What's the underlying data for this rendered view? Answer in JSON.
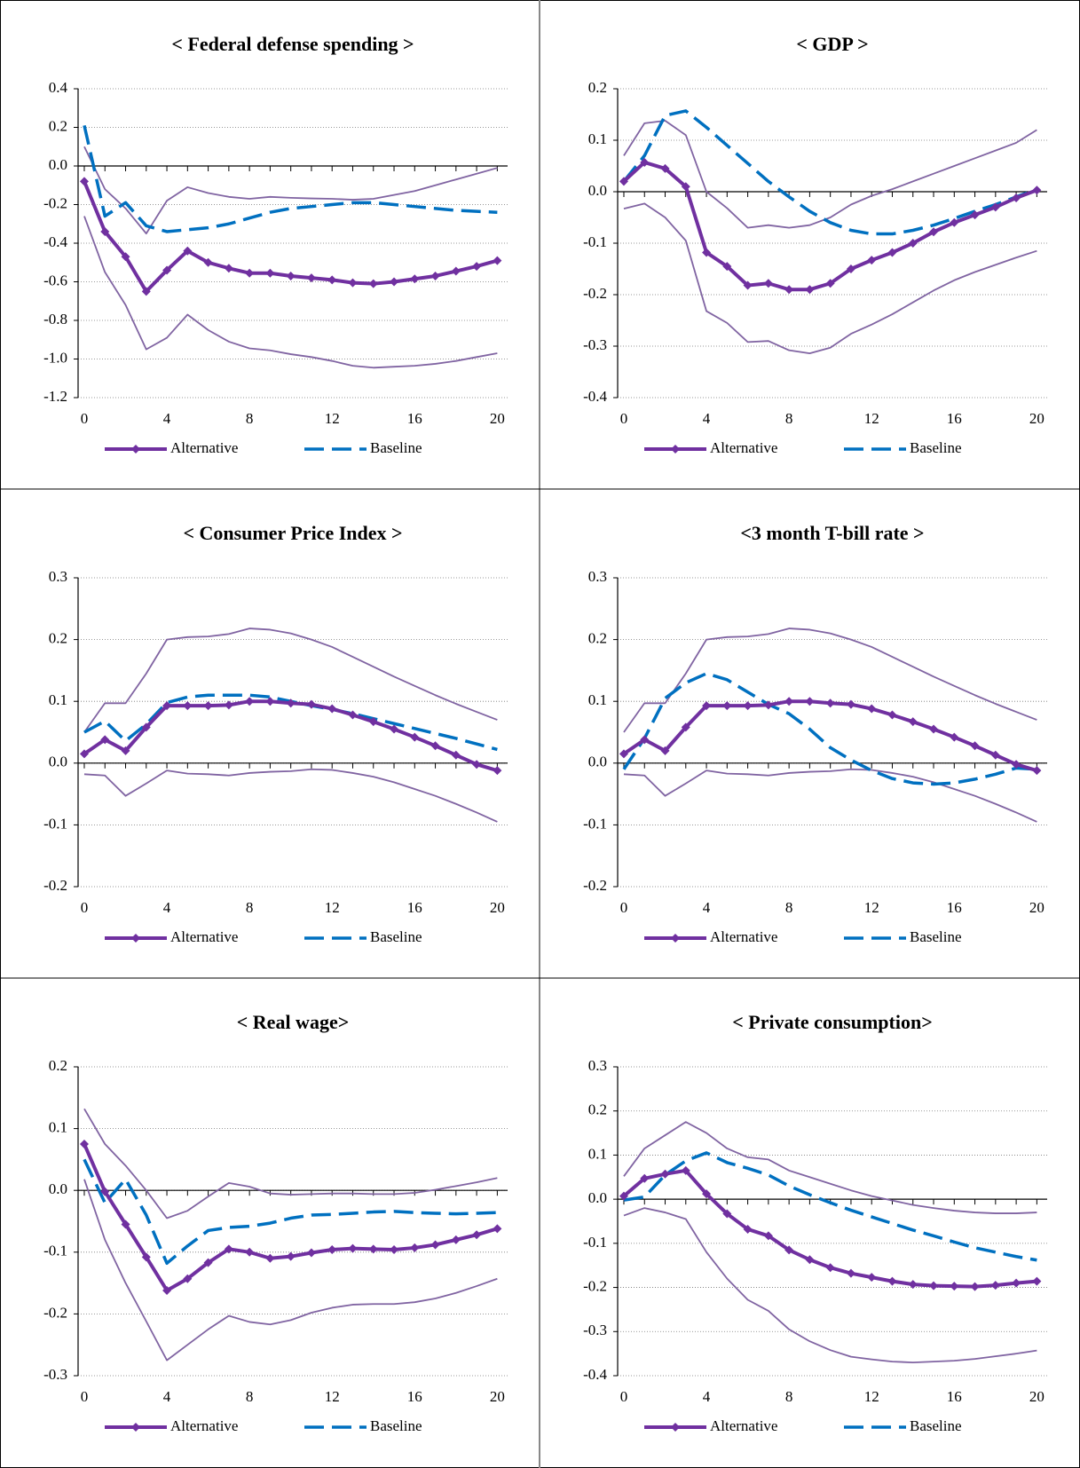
{
  "chart_data": [
    {
      "type": "line",
      "title": "< Federal defense spending >",
      "x": [
        0,
        1,
        2,
        3,
        4,
        5,
        6,
        7,
        8,
        9,
        10,
        11,
        12,
        13,
        14,
        15,
        16,
        17,
        18,
        19,
        20
      ],
      "xlim": [
        -0.3,
        20.5
      ],
      "xticks": [
        0,
        4,
        8,
        12,
        16,
        20
      ],
      "ylim": [
        -1.2,
        0.4
      ],
      "yticks": [
        -1.2,
        {
          "value": -1,
          "label": "-1.0"
        },
        -0.8,
        -0.6,
        -0.4,
        -0.2,
        {
          "value": 0,
          "label": "0.0"
        },
        0.2,
        0.4
      ],
      "grid": true,
      "series": [
        {
          "name": "Alternative",
          "color": "#7030a0",
          "marker": "diamond",
          "values": [
            -0.08,
            -0.34,
            -0.47,
            -0.65,
            -0.54,
            -0.44,
            -0.5,
            -0.53,
            -0.555,
            -0.555,
            -0.57,
            -0.58,
            -0.59,
            -0.605,
            -0.61,
            -0.6,
            -0.585,
            -0.57,
            -0.545,
            -0.52,
            -0.49
          ]
        },
        {
          "name": "Baseline",
          "color": "#0070c0",
          "dash": true,
          "values": [
            0.21,
            -0.26,
            -0.19,
            -0.31,
            -0.34,
            -0.33,
            -0.32,
            -0.3,
            -0.27,
            -0.24,
            -0.22,
            -0.21,
            -0.2,
            -0.19,
            -0.19,
            -0.2,
            -0.21,
            -0.22,
            -0.23,
            -0.235,
            -0.24
          ]
        },
        {
          "color": "#8064a2",
          "values": [
            0.1,
            -0.12,
            -0.22,
            -0.35,
            -0.18,
            -0.11,
            -0.14,
            -0.16,
            -0.17,
            -0.16,
            -0.165,
            -0.168,
            -0.17,
            -0.175,
            -0.17,
            -0.15,
            -0.13,
            -0.1,
            -0.07,
            -0.04,
            -0.01
          ]
        },
        {
          "color": "#8064a2",
          "values": [
            -0.26,
            -0.55,
            -0.72,
            -0.95,
            -0.89,
            -0.77,
            -0.85,
            -0.91,
            -0.945,
            -0.955,
            -0.975,
            -0.99,
            -1.01,
            -1.035,
            -1.045,
            -1.04,
            -1.035,
            -1.025,
            -1.01,
            -0.99,
            -0.97
          ]
        }
      ]
    },
    {
      "type": "line",
      "title": "< GDP >",
      "x": [
        0,
        1,
        2,
        3,
        4,
        5,
        6,
        7,
        8,
        9,
        10,
        11,
        12,
        13,
        14,
        15,
        16,
        17,
        18,
        19,
        20
      ],
      "xlim": [
        -0.3,
        20.5
      ],
      "xticks": [
        0,
        4,
        8,
        12,
        16,
        20
      ],
      "ylim": [
        -0.4,
        0.2
      ],
      "yticks": [
        -0.4,
        -0.3,
        -0.2,
        -0.1,
        {
          "value": 0,
          "label": "0.0"
        },
        0.1,
        0.2
      ],
      "grid": true,
      "series": [
        {
          "name": "Alternative",
          "color": "#7030a0",
          "marker": "diamond",
          "values": [
            0.02,
            0.057,
            0.045,
            0.01,
            -0.118,
            -0.145,
            -0.182,
            -0.178,
            -0.19,
            -0.19,
            -0.178,
            -0.15,
            -0.133,
            -0.118,
            -0.1,
            -0.078,
            -0.06,
            -0.045,
            -0.03,
            -0.012,
            0.003
          ]
        },
        {
          "name": "Baseline",
          "color": "#0070c0",
          "dash": true,
          "values": [
            0.02,
            0.07,
            0.148,
            0.157,
            0.125,
            0.09,
            0.055,
            0.02,
            -0.01,
            -0.038,
            -0.06,
            -0.075,
            -0.082,
            -0.082,
            -0.075,
            -0.065,
            -0.052,
            -0.038,
            -0.025,
            -0.01,
            0.005
          ]
        },
        {
          "color": "#8064a2",
          "values": [
            0.07,
            0.133,
            0.138,
            0.11,
            0.0,
            -0.032,
            -0.07,
            -0.065,
            -0.07,
            -0.065,
            -0.05,
            -0.025,
            -0.008,
            0.005,
            0.02,
            0.035,
            0.05,
            0.065,
            0.08,
            0.095,
            0.12
          ]
        },
        {
          "color": "#8064a2",
          "values": [
            -0.033,
            -0.023,
            -0.05,
            -0.095,
            -0.232,
            -0.255,
            -0.292,
            -0.29,
            -0.308,
            -0.314,
            -0.303,
            -0.276,
            -0.258,
            -0.238,
            -0.215,
            -0.192,
            -0.172,
            -0.156,
            -0.142,
            -0.128,
            -0.115
          ]
        }
      ]
    },
    {
      "type": "line",
      "title": "< Consumer Price Index >",
      "x": [
        0,
        1,
        2,
        3,
        4,
        5,
        6,
        7,
        8,
        9,
        10,
        11,
        12,
        13,
        14,
        15,
        16,
        17,
        18,
        19,
        20
      ],
      "xlim": [
        -0.3,
        20.5
      ],
      "xticks": [
        0,
        4,
        8,
        12,
        16,
        20
      ],
      "ylim": [
        -0.2,
        0.3
      ],
      "yticks": [
        -0.2,
        -0.1,
        {
          "value": 0,
          "label": "0.0"
        },
        0.1,
        0.2,
        0.3
      ],
      "grid": true,
      "series": [
        {
          "name": "Alternative",
          "color": "#7030a0",
          "marker": "diamond",
          "values": [
            0.015,
            0.038,
            0.02,
            0.058,
            0.093,
            0.093,
            0.093,
            0.094,
            0.1,
            0.1,
            0.097,
            0.095,
            0.088,
            0.078,
            0.067,
            0.055,
            0.042,
            0.028,
            0.013,
            -0.002,
            -0.012
          ]
        },
        {
          "name": "Baseline",
          "color": "#0070c0",
          "dash": true,
          "values": [
            0.05,
            0.068,
            0.036,
            0.063,
            0.098,
            0.107,
            0.11,
            0.11,
            0.11,
            0.107,
            0.1,
            0.093,
            0.087,
            0.08,
            0.072,
            0.064,
            0.056,
            0.048,
            0.04,
            0.031,
            0.022
          ]
        },
        {
          "color": "#8064a2",
          "values": [
            0.05,
            0.097,
            0.097,
            0.145,
            0.2,
            0.204,
            0.205,
            0.209,
            0.218,
            0.216,
            0.21,
            0.2,
            0.188,
            0.172,
            0.156,
            0.14,
            0.125,
            0.11,
            0.096,
            0.083,
            0.07
          ]
        },
        {
          "color": "#8064a2",
          "values": [
            -0.018,
            -0.02,
            -0.053,
            -0.033,
            -0.012,
            -0.017,
            -0.018,
            -0.02,
            -0.016,
            -0.014,
            -0.013,
            -0.01,
            -0.011,
            -0.016,
            -0.022,
            -0.031,
            -0.042,
            -0.053,
            -0.066,
            -0.08,
            -0.095
          ]
        }
      ]
    },
    {
      "type": "line",
      "title": "<3 month T-bill rate >",
      "x": [
        0,
        1,
        2,
        3,
        4,
        5,
        6,
        7,
        8,
        9,
        10,
        11,
        12,
        13,
        14,
        15,
        16,
        17,
        18,
        19,
        20
      ],
      "xlim": [
        -0.3,
        20.5
      ],
      "xticks": [
        0,
        4,
        8,
        12,
        16,
        20
      ],
      "ylim": [
        -0.2,
        0.3
      ],
      "yticks": [
        -0.2,
        -0.1,
        {
          "value": 0,
          "label": "0.0"
        },
        0.1,
        0.2,
        0.3
      ],
      "grid": true,
      "series": [
        {
          "name": "Alternative",
          "color": "#7030a0",
          "marker": "diamond",
          "values": [
            0.015,
            0.038,
            0.02,
            0.058,
            0.093,
            0.093,
            0.093,
            0.094,
            0.1,
            0.1,
            0.097,
            0.095,
            0.088,
            0.078,
            0.067,
            0.055,
            0.042,
            0.028,
            0.013,
            -0.002,
            -0.012
          ]
        },
        {
          "name": "Baseline",
          "color": "#0070c0",
          "dash": true,
          "values": [
            -0.01,
            0.04,
            0.105,
            0.13,
            0.145,
            0.135,
            0.115,
            0.095,
            0.08,
            0.055,
            0.025,
            0.005,
            -0.012,
            -0.025,
            -0.032,
            -0.034,
            -0.032,
            -0.026,
            -0.018,
            -0.008,
            -0.01
          ]
        },
        {
          "color": "#8064a2",
          "values": [
            0.05,
            0.097,
            0.097,
            0.145,
            0.2,
            0.204,
            0.205,
            0.209,
            0.218,
            0.216,
            0.21,
            0.2,
            0.188,
            0.172,
            0.156,
            0.14,
            0.125,
            0.11,
            0.096,
            0.083,
            0.07
          ]
        },
        {
          "color": "#8064a2",
          "values": [
            -0.018,
            -0.02,
            -0.053,
            -0.033,
            -0.012,
            -0.017,
            -0.018,
            -0.02,
            -0.016,
            -0.014,
            -0.013,
            -0.01,
            -0.011,
            -0.016,
            -0.022,
            -0.031,
            -0.042,
            -0.053,
            -0.066,
            -0.08,
            -0.095
          ]
        }
      ]
    },
    {
      "type": "line",
      "title": "< Real wage>",
      "x": [
        0,
        1,
        2,
        3,
        4,
        5,
        6,
        7,
        8,
        9,
        10,
        11,
        12,
        13,
        14,
        15,
        16,
        17,
        18,
        19,
        20
      ],
      "xlim": [
        -0.3,
        20.5
      ],
      "xticks": [
        0,
        4,
        8,
        12,
        16,
        20
      ],
      "ylim": [
        -0.3,
        0.2
      ],
      "yticks": [
        -0.3,
        -0.2,
        -0.1,
        {
          "value": 0,
          "label": "0.0"
        },
        0.1,
        0.2
      ],
      "grid": true,
      "series": [
        {
          "name": "Alternative",
          "color": "#7030a0",
          "marker": "diamond",
          "values": [
            0.075,
            -0.002,
            -0.055,
            -0.108,
            -0.162,
            -0.143,
            -0.117,
            -0.095,
            -0.1,
            -0.11,
            -0.107,
            -0.101,
            -0.096,
            -0.094,
            -0.095,
            -0.096,
            -0.093,
            -0.088,
            -0.08,
            -0.072,
            -0.062
          ]
        },
        {
          "name": "Baseline",
          "color": "#0070c0",
          "dash": true,
          "values": [
            0.05,
            -0.02,
            0.018,
            -0.04,
            -0.118,
            -0.09,
            -0.065,
            -0.06,
            -0.058,
            -0.053,
            -0.045,
            -0.04,
            -0.039,
            -0.037,
            -0.035,
            -0.034,
            -0.036,
            -0.037,
            -0.038,
            -0.037,
            -0.036
          ]
        },
        {
          "color": "#8064a2",
          "values": [
            0.132,
            0.075,
            0.04,
            0.0,
            -0.045,
            -0.033,
            -0.01,
            0.012,
            0.006,
            -0.005,
            -0.007,
            -0.006,
            -0.005,
            -0.005,
            -0.006,
            -0.006,
            -0.004,
            0.001,
            0.007,
            0.013,
            0.02
          ]
        },
        {
          "color": "#8064a2",
          "values": [
            0.018,
            -0.08,
            -0.15,
            -0.212,
            -0.275,
            -0.25,
            -0.225,
            -0.203,
            -0.213,
            -0.217,
            -0.21,
            -0.198,
            -0.19,
            -0.185,
            -0.184,
            -0.184,
            -0.181,
            -0.175,
            -0.166,
            -0.155,
            -0.143
          ]
        }
      ]
    },
    {
      "type": "line",
      "title": "< Private consumption>",
      "x": [
        0,
        1,
        2,
        3,
        4,
        5,
        6,
        7,
        8,
        9,
        10,
        11,
        12,
        13,
        14,
        15,
        16,
        17,
        18,
        19,
        20
      ],
      "xlim": [
        -0.3,
        20.5
      ],
      "xticks": [
        0,
        4,
        8,
        12,
        16,
        20
      ],
      "ylim": [
        -0.4,
        0.3
      ],
      "yticks": [
        -0.4,
        -0.3,
        -0.2,
        -0.1,
        {
          "value": 0,
          "label": "0.0"
        },
        0.1,
        0.2,
        0.3
      ],
      "grid": true,
      "series": [
        {
          "name": "Alternative",
          "color": "#7030a0",
          "marker": "diamond",
          "values": [
            0.007,
            0.047,
            0.057,
            0.065,
            0.012,
            -0.033,
            -0.068,
            -0.083,
            -0.115,
            -0.137,
            -0.155,
            -0.168,
            -0.177,
            -0.186,
            -0.193,
            -0.196,
            -0.197,
            -0.198,
            -0.195,
            -0.19,
            -0.186
          ]
        },
        {
          "name": "Baseline",
          "color": "#0070c0",
          "dash": true,
          "values": [
            -0.002,
            0.005,
            0.055,
            0.087,
            0.105,
            0.083,
            0.07,
            0.055,
            0.03,
            0.01,
            -0.008,
            -0.025,
            -0.04,
            -0.055,
            -0.07,
            -0.083,
            -0.097,
            -0.11,
            -0.12,
            -0.13,
            -0.138
          ]
        },
        {
          "color": "#8064a2",
          "values": [
            0.052,
            0.115,
            0.145,
            0.175,
            0.15,
            0.115,
            0.095,
            0.09,
            0.065,
            0.05,
            0.035,
            0.02,
            0.007,
            -0.003,
            -0.013,
            -0.02,
            -0.026,
            -0.03,
            -0.032,
            -0.032,
            -0.03
          ]
        },
        {
          "color": "#8064a2",
          "values": [
            -0.037,
            -0.02,
            -0.03,
            -0.045,
            -0.12,
            -0.18,
            -0.228,
            -0.253,
            -0.295,
            -0.322,
            -0.342,
            -0.357,
            -0.363,
            -0.368,
            -0.37,
            -0.368,
            -0.366,
            -0.362,
            -0.356,
            -0.35,
            -0.343
          ]
        }
      ]
    }
  ]
}
